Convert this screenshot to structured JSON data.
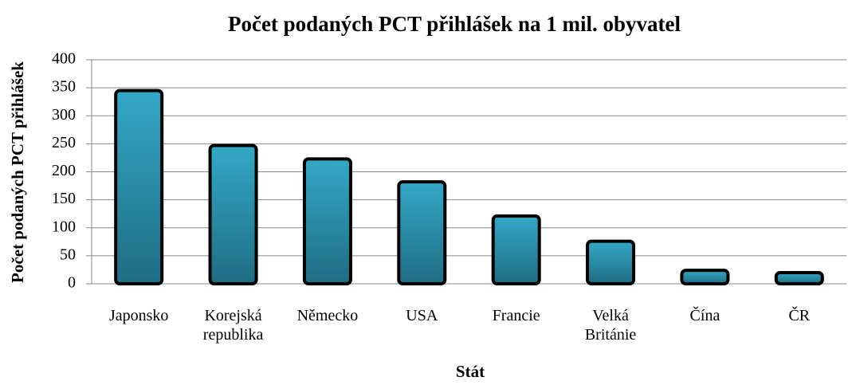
{
  "chart_data": {
    "type": "bar",
    "title": "Počet podaných PCT přihlášek na 1  mil. obyvatel",
    "x_label": "Stát",
    "y_label": "Počet podaných PCT přihlášek",
    "categories": [
      "Japonsko",
      "Korejská republika",
      "Německo",
      "USA",
      "Francie",
      "Velká Británie",
      "Čína",
      "ČR"
    ],
    "values": [
      345,
      247,
      223,
      182,
      121,
      76,
      24,
      20
    ],
    "color": "#2a9ab8",
    "ylim": [
      0,
      400
    ],
    "yticks": [
      0,
      50,
      100,
      150,
      200,
      250,
      300,
      350,
      400
    ],
    "grid": true
  }
}
